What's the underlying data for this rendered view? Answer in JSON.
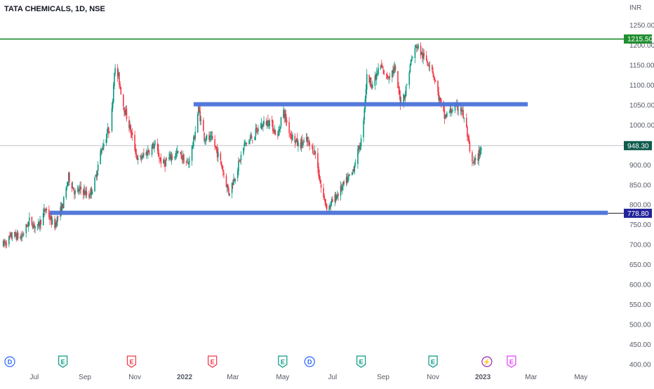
{
  "header": {
    "symbol_title": "TATA CHEMICALS, 1D, NSE"
  },
  "chart_data": {
    "type": "candlestick",
    "currency_label": "INR",
    "ylim": [
      390,
      1260
    ],
    "y_ticks": [
      400,
      450,
      500,
      550,
      600,
      650,
      700,
      750,
      800,
      850,
      900,
      950,
      1000,
      1050,
      1100,
      1150,
      1200,
      1250
    ],
    "x_tick_labels": [
      "Jul",
      "Sep",
      "Nov",
      "2022",
      "Mar",
      "May",
      "Jul",
      "Sep",
      "Nov",
      "2023",
      "Mar",
      "May"
    ],
    "x_tick_dates": [
      "2021-07-01",
      "2021-09-01",
      "2021-11-01",
      "2022-01-01",
      "2022-03-01",
      "2022-05-01",
      "2022-07-01",
      "2022-09-01",
      "2022-11-01",
      "2023-01-01",
      "2023-03-01",
      "2023-05-01"
    ],
    "x_range": [
      "2021-05-20",
      "2023-06-20"
    ],
    "bold_x_labels": [
      "2022",
      "2023"
    ],
    "price_path": [
      [
        "2021-05-24",
        700
      ],
      [
        "2021-06-05",
        725
      ],
      [
        "2021-06-15",
        718
      ],
      [
        "2021-06-25",
        760
      ],
      [
        "2021-07-05",
        742
      ],
      [
        "2021-07-15",
        790
      ],
      [
        "2021-07-25",
        745
      ],
      [
        "2021-08-05",
        800
      ],
      [
        "2021-08-12",
        870
      ],
      [
        "2021-08-20",
        830
      ],
      [
        "2021-08-28",
        840
      ],
      [
        "2021-09-05",
        820
      ],
      [
        "2021-09-12",
        850
      ],
      [
        "2021-09-20",
        930
      ],
      [
        "2021-09-28",
        980
      ],
      [
        "2021-10-03",
        1000
      ],
      [
        "2021-10-07",
        1140
      ],
      [
        "2021-10-12",
        1120
      ],
      [
        "2021-10-18",
        1050
      ],
      [
        "2021-10-25",
        1000
      ],
      [
        "2021-11-05",
        910
      ],
      [
        "2021-11-15",
        930
      ],
      [
        "2021-11-25",
        950
      ],
      [
        "2021-12-05",
        900
      ],
      [
        "2021-12-15",
        920
      ],
      [
        "2021-12-25",
        930
      ],
      [
        "2022-01-05",
        900
      ],
      [
        "2022-01-12",
        960
      ],
      [
        "2022-01-18",
        1040
      ],
      [
        "2022-01-25",
        970
      ],
      [
        "2022-02-05",
        960
      ],
      [
        "2022-02-15",
        900
      ],
      [
        "2022-02-24",
        830
      ],
      [
        "2022-03-05",
        880
      ],
      [
        "2022-03-15",
        950
      ],
      [
        "2022-03-25",
        970
      ],
      [
        "2022-04-05",
        1000
      ],
      [
        "2022-04-15",
        1010
      ],
      [
        "2022-04-25",
        970
      ],
      [
        "2022-05-01",
        1040
      ],
      [
        "2022-05-10",
        980
      ],
      [
        "2022-05-20",
        950
      ],
      [
        "2022-05-30",
        960
      ],
      [
        "2022-06-10",
        930
      ],
      [
        "2022-06-18",
        830
      ],
      [
        "2022-06-25",
        790
      ],
      [
        "2022-07-05",
        820
      ],
      [
        "2022-07-15",
        850
      ],
      [
        "2022-07-25",
        880
      ],
      [
        "2022-08-05",
        960
      ],
      [
        "2022-08-08",
        1020
      ],
      [
        "2022-08-12",
        1120
      ],
      [
        "2022-08-20",
        1100
      ],
      [
        "2022-08-28",
        1150
      ],
      [
        "2022-09-05",
        1120
      ],
      [
        "2022-09-15",
        1140
      ],
      [
        "2022-09-22",
        1060
      ],
      [
        "2022-09-28",
        1080
      ],
      [
        "2022-10-05",
        1160
      ],
      [
        "2022-10-12",
        1200
      ],
      [
        "2022-10-20",
        1170
      ],
      [
        "2022-10-30",
        1150
      ],
      [
        "2022-11-08",
        1070
      ],
      [
        "2022-11-15",
        1020
      ],
      [
        "2022-11-25",
        1040
      ],
      [
        "2022-12-05",
        1045
      ],
      [
        "2022-12-12",
        990
      ],
      [
        "2022-12-18",
        900
      ],
      [
        "2022-12-24",
        910
      ],
      [
        "2022-12-31",
        948.3
      ]
    ],
    "horizontal_lines": [
      {
        "price": 1215.5,
        "label": "1215.50",
        "color": "#1e8e2e",
        "label_bg": "#1e8e2e",
        "label_color": "#ffffff"
      }
    ],
    "zones": [
      {
        "price": 1052,
        "start": "2022-01-12",
        "end": "2023-02-25",
        "color": "#4a72d8"
      },
      {
        "price": 780,
        "start": "2021-07-20",
        "end": "2023-06-03",
        "color": "#4a72d8"
      }
    ],
    "tick_line": {
      "price": 778.8,
      "start": "2023-06-03",
      "color": "#131722"
    },
    "price_labels": [
      {
        "price": 948.3,
        "label": "948.30",
        "bg": "#0f5b4c",
        "color": "#ffffff"
      },
      {
        "price": 778.8,
        "label": "778.80",
        "bg": "#22239a",
        "color": "#ffffff"
      }
    ],
    "last_price_line": {
      "price": 948.3,
      "color": "#bfc3cc"
    },
    "up_color": "#089981",
    "down_color": "#f23645",
    "events": [
      {
        "date": "2021-06-01",
        "letter": "D",
        "color": "#2962ff"
      },
      {
        "date": "2021-08-05",
        "letter": "E",
        "color": "#089981"
      },
      {
        "date": "2021-10-28",
        "letter": "E",
        "color": "#f23645"
      },
      {
        "date": "2022-02-04",
        "letter": "E",
        "color": "#f23645"
      },
      {
        "date": "2022-05-01",
        "letter": "E",
        "color": "#089981"
      },
      {
        "date": "2022-06-03",
        "letter": "D",
        "color": "#2962ff"
      },
      {
        "date": "2022-08-05",
        "letter": "E",
        "color": "#089981"
      },
      {
        "date": "2022-11-01",
        "letter": "E",
        "color": "#089981"
      },
      {
        "date": "2023-01-06",
        "letter": "⚡",
        "color": "#9c27b0"
      },
      {
        "date": "2023-02-05",
        "letter": "E",
        "color": "#e040fb"
      }
    ]
  }
}
